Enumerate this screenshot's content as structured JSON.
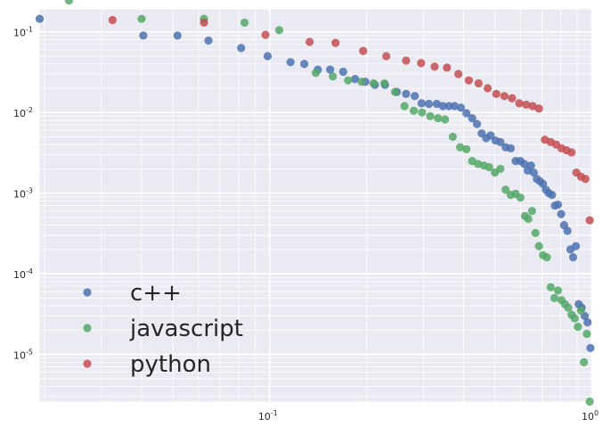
{
  "chart_data": {
    "type": "scatter",
    "xscale": "log",
    "yscale": "log",
    "xlim": [
      0.0193,
      1.0
    ],
    "ylim": [
      2.6e-06,
      0.19
    ],
    "grid": true,
    "legend_placement": "lower-left",
    "x_ticks": [
      {
        "value": 0.1,
        "base": "10",
        "exp": "-1"
      },
      {
        "value": 1,
        "base": "10",
        "exp": "0"
      }
    ],
    "y_ticks": [
      {
        "value": 0.1,
        "base": "10",
        "exp": "-1"
      },
      {
        "value": 0.01,
        "base": "10",
        "exp": "-2"
      },
      {
        "value": 0.001,
        "base": "10",
        "exp": "-3"
      },
      {
        "value": 0.0001,
        "base": "10",
        "exp": "-4"
      },
      {
        "value": 1e-05,
        "base": "10",
        "exp": "-5"
      }
    ],
    "series": [
      {
        "name": "c++",
        "color": "#4c72b0",
        "x": [
          0.0193,
          0.0405,
          0.0517,
          0.0645,
          0.0815,
          0.0985,
          0.116,
          0.128,
          0.141,
          0.154,
          0.169,
          0.184,
          0.198,
          0.212,
          0.228,
          0.248,
          0.265,
          0.282,
          0.296,
          0.312,
          0.33,
          0.345,
          0.36,
          0.375,
          0.392,
          0.408,
          0.425,
          0.44,
          0.455,
          0.47,
          0.485,
          0.502,
          0.52,
          0.54,
          0.56,
          0.58,
          0.6,
          0.617,
          0.632,
          0.647,
          0.66,
          0.675,
          0.69,
          0.705,
          0.72,
          0.735,
          0.752,
          0.768,
          0.785,
          0.803,
          0.82,
          0.84,
          0.858,
          0.875,
          0.892,
          0.91,
          0.93,
          0.95,
          0.97,
          0.99
        ],
        "y": [
          0.145,
          0.09,
          0.09,
          0.078,
          0.063,
          0.05,
          0.042,
          0.04,
          0.034,
          0.034,
          0.032,
          0.026,
          0.024,
          0.022,
          0.022,
          0.018,
          0.017,
          0.016,
          0.013,
          0.0128,
          0.0128,
          0.012,
          0.012,
          0.012,
          0.0115,
          0.0098,
          0.0085,
          0.0072,
          0.0055,
          0.0048,
          0.0052,
          0.0045,
          0.0043,
          0.0037,
          0.0036,
          0.0025,
          0.0025,
          0.0023,
          0.0019,
          0.0022,
          0.0018,
          0.0015,
          0.0014,
          0.0013,
          0.0011,
          0.001,
          0.00095,
          0.0007,
          0.00072,
          0.00055,
          0.0004,
          0.00034,
          0.0002,
          0.00016,
          0.00022,
          4.2e-05,
          3.8e-05,
          3e-05,
          2.5e-05,
          1.2e-05
        ]
      },
      {
        "name": "javascript",
        "color": "#55a868",
        "x": [
          0.0238,
          0.04,
          0.0625,
          0.0835,
          0.107,
          0.139,
          0.157,
          0.175,
          0.193,
          0.21,
          0.227,
          0.245,
          0.262,
          0.28,
          0.297,
          0.315,
          0.333,
          0.35,
          0.37,
          0.39,
          0.408,
          0.425,
          0.443,
          0.462,
          0.48,
          0.5,
          0.52,
          0.54,
          0.56,
          0.58,
          0.6,
          0.62,
          0.635,
          0.652,
          0.668,
          0.685,
          0.705,
          0.725,
          0.745,
          0.765,
          0.785,
          0.805,
          0.825,
          0.845,
          0.865,
          0.885,
          0.905,
          0.925,
          0.945,
          0.965,
          0.985
        ],
        "y": [
          0.245,
          0.145,
          0.145,
          0.13,
          0.105,
          0.031,
          0.028,
          0.025,
          0.024,
          0.023,
          0.023,
          0.018,
          0.012,
          0.0105,
          0.01,
          0.009,
          0.0085,
          0.0082,
          0.005,
          0.0037,
          0.0035,
          0.0025,
          0.0023,
          0.0022,
          0.0021,
          0.0018,
          0.002,
          0.0011,
          0.00095,
          0.00098,
          0.00088,
          0.00052,
          0.00048,
          0.0006,
          0.00032,
          0.00022,
          0.00017,
          0.00016,
          6.8e-05,
          5e-05,
          6.2e-05,
          4.7e-05,
          4.2e-05,
          3.8e-05,
          3.1e-05,
          2.8e-05,
          2.2e-05,
          3.5e-05,
          8e-06,
          1.8e-05,
          2.6e-06
        ]
      },
      {
        "name": "python",
        "color": "#c44e52",
        "x": [
          0.0325,
          0.0625,
          0.097,
          0.133,
          0.16,
          0.195,
          0.23,
          0.265,
          0.295,
          0.325,
          0.355,
          0.385,
          0.415,
          0.445,
          0.475,
          0.505,
          0.535,
          0.565,
          0.595,
          0.625,
          0.655,
          0.685,
          0.715,
          0.745,
          0.775,
          0.805,
          0.835,
          0.865,
          0.895,
          0.925,
          0.955,
          0.985
        ],
        "y": [
          0.14,
          0.13,
          0.092,
          0.075,
          0.073,
          0.058,
          0.05,
          0.044,
          0.041,
          0.037,
          0.036,
          0.03,
          0.025,
          0.023,
          0.02,
          0.017,
          0.016,
          0.015,
          0.013,
          0.0125,
          0.012,
          0.0112,
          0.0046,
          0.0043,
          0.004,
          0.0036,
          0.0034,
          0.0032,
          0.0018,
          0.0016,
          0.0015,
          0.00046
        ]
      }
    ]
  }
}
